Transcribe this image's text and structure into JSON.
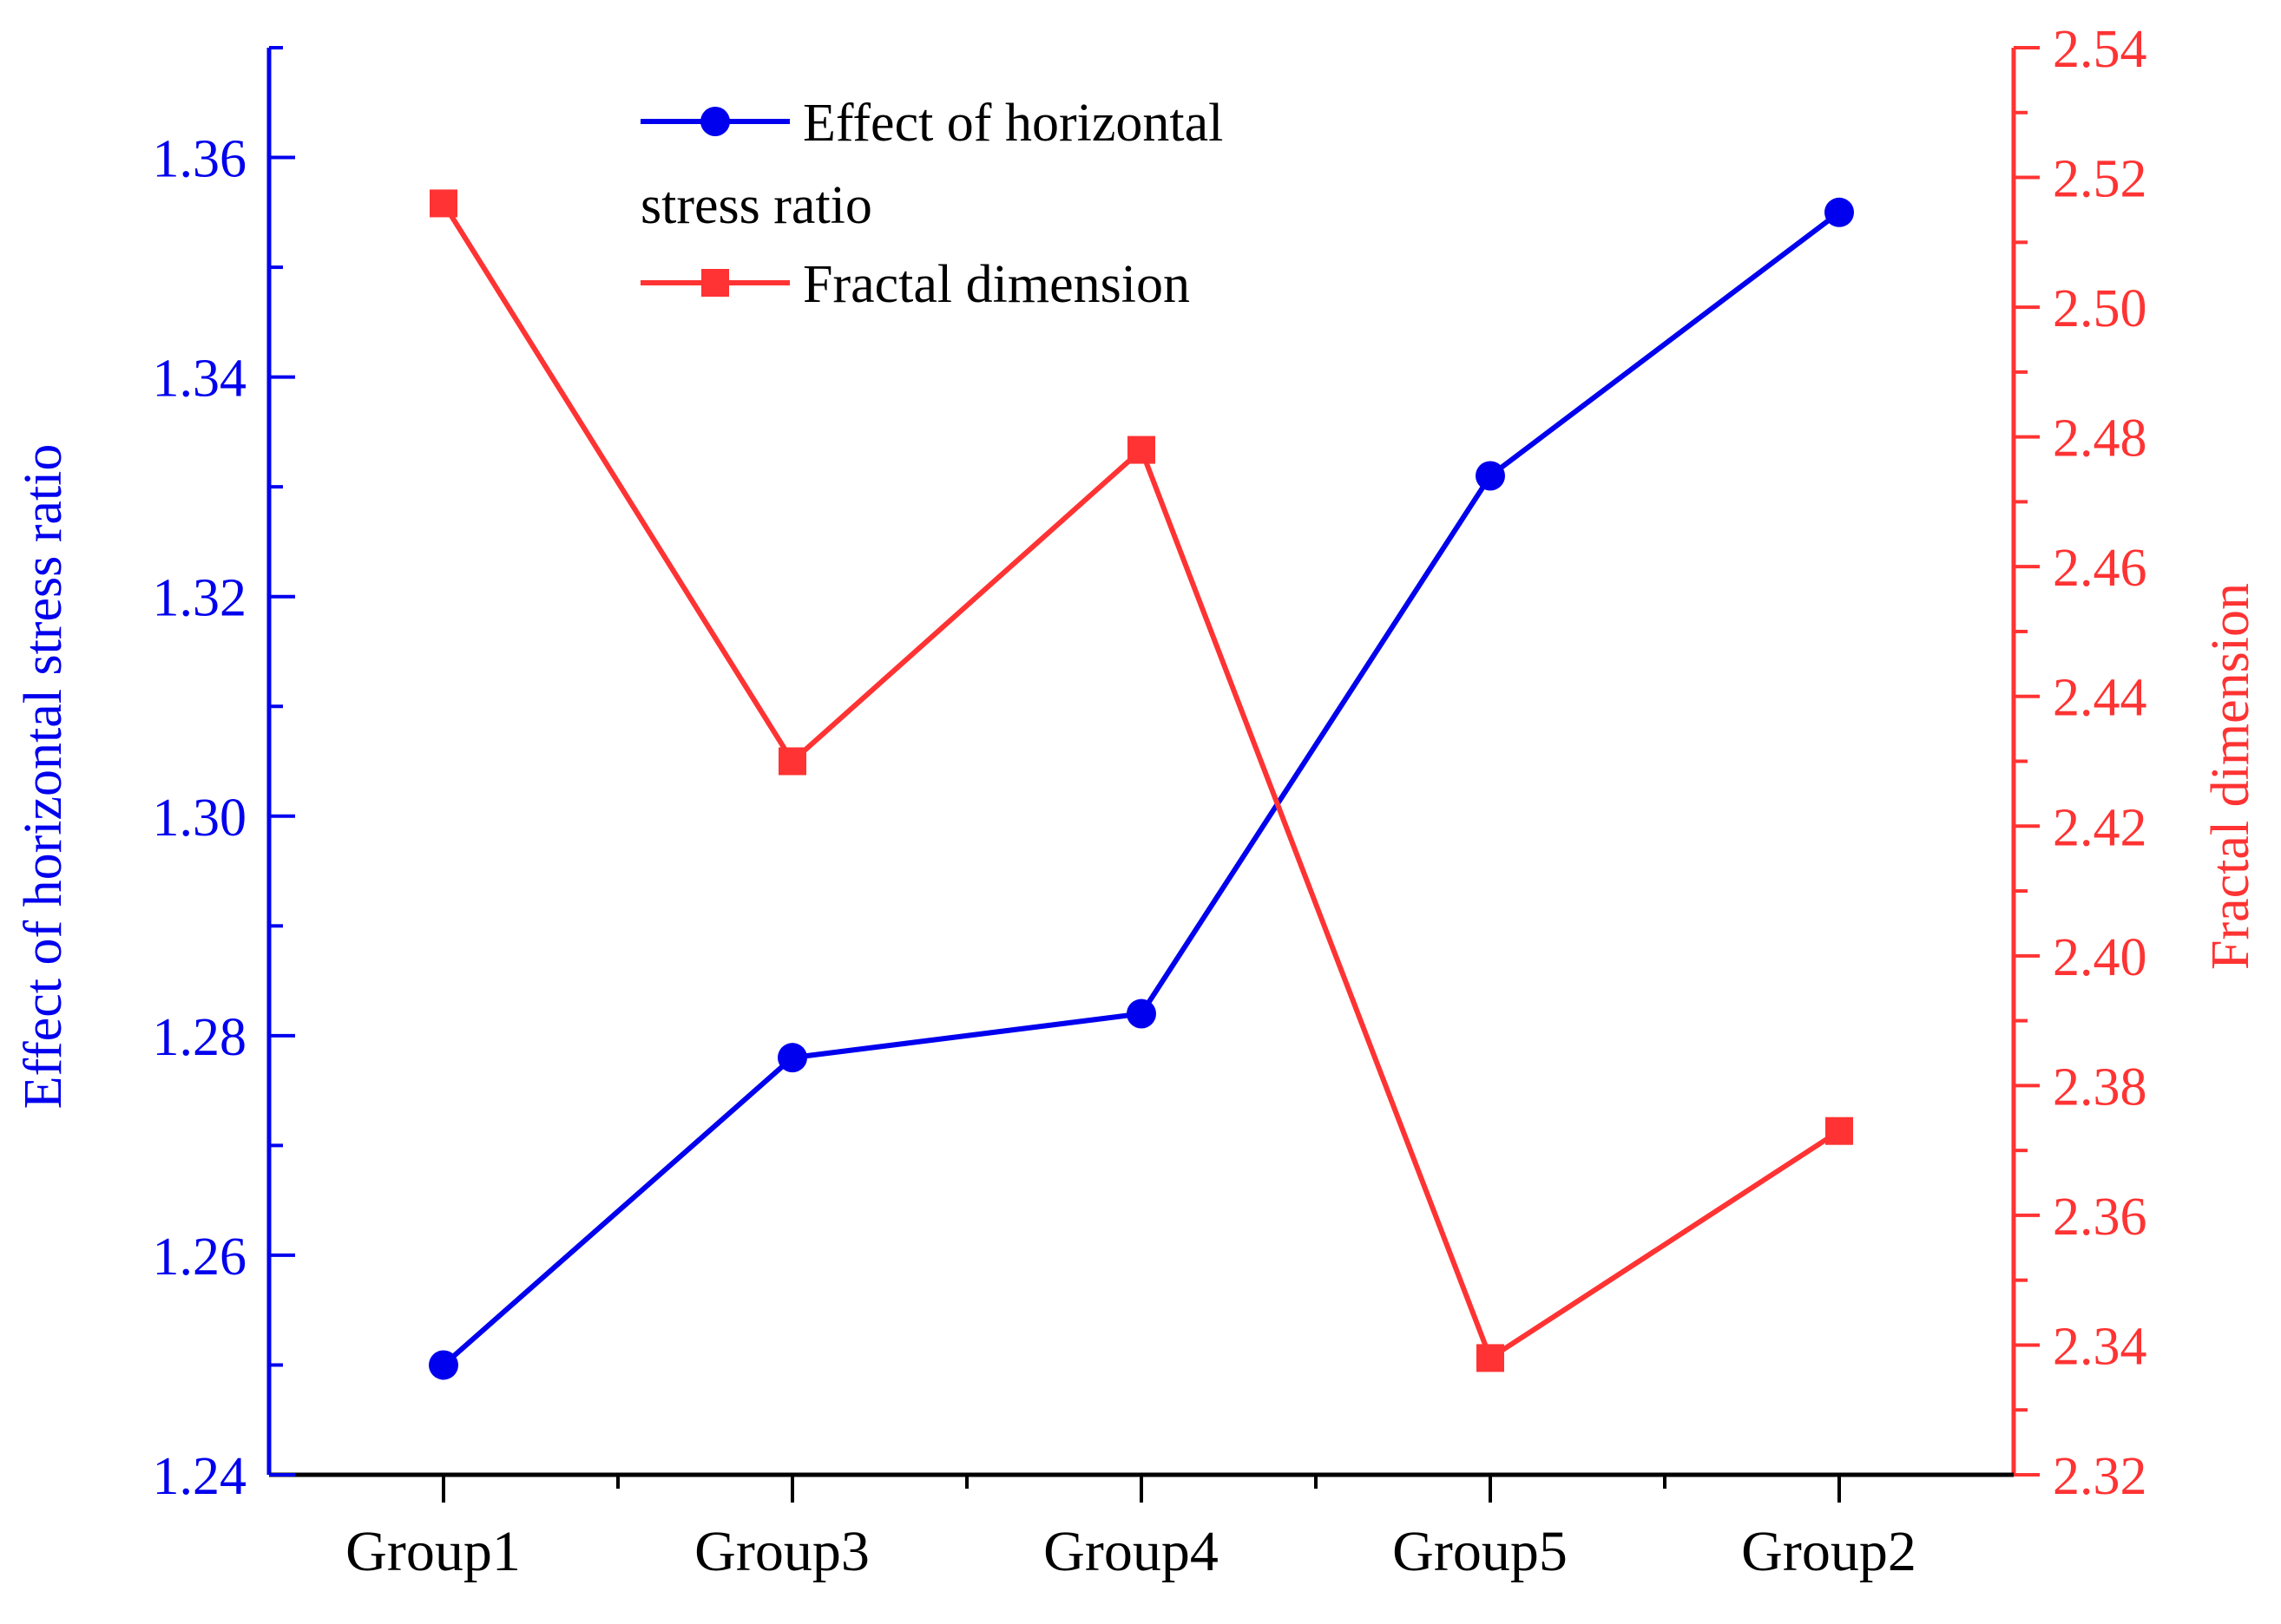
{
  "colors": {
    "left_axis": "#0000ee",
    "right_axis": "#ff3333",
    "bottom_axis": "#000000"
  },
  "chart_data": {
    "type": "line",
    "categories": [
      "Group1",
      "Group3",
      "Group4",
      "Group5",
      "Group2"
    ],
    "series": [
      {
        "name": "Effect of horizontal stress ratio",
        "axis": "left",
        "marker": "circle",
        "color": "#0000ee",
        "values": [
          1.25,
          1.278,
          1.282,
          1.331,
          1.355
        ]
      },
      {
        "name": "Fractal dimension",
        "axis": "right",
        "marker": "square",
        "color": "#ff3333",
        "values": [
          2.516,
          2.43,
          2.478,
          2.338,
          2.373
        ]
      }
    ],
    "y_left": {
      "label": "Effect of horizontal stress ratio",
      "ylim": [
        1.24,
        1.37
      ],
      "ticks": [
        "1.24",
        "1.26",
        "1.28",
        "1.30",
        "1.32",
        "1.34",
        "1.36"
      ]
    },
    "y_right": {
      "label": "Fractal dimension",
      "ylim": [
        2.32,
        2.54
      ],
      "ticks": [
        "2.32",
        "2.34",
        "2.36",
        "2.38",
        "2.40",
        "2.42",
        "2.44",
        "2.46",
        "2.48",
        "2.50",
        "2.52",
        "2.54"
      ]
    },
    "legend": {
      "placement": "top-center",
      "entries": [
        {
          "lines": [
            "Effect of horizontal",
            "stress ratio"
          ],
          "marker": "circle",
          "color": "#0000ee"
        },
        {
          "lines": [
            "Fractal dimension"
          ],
          "marker": "square",
          "color": "#ff3333"
        }
      ]
    },
    "grid": false
  }
}
